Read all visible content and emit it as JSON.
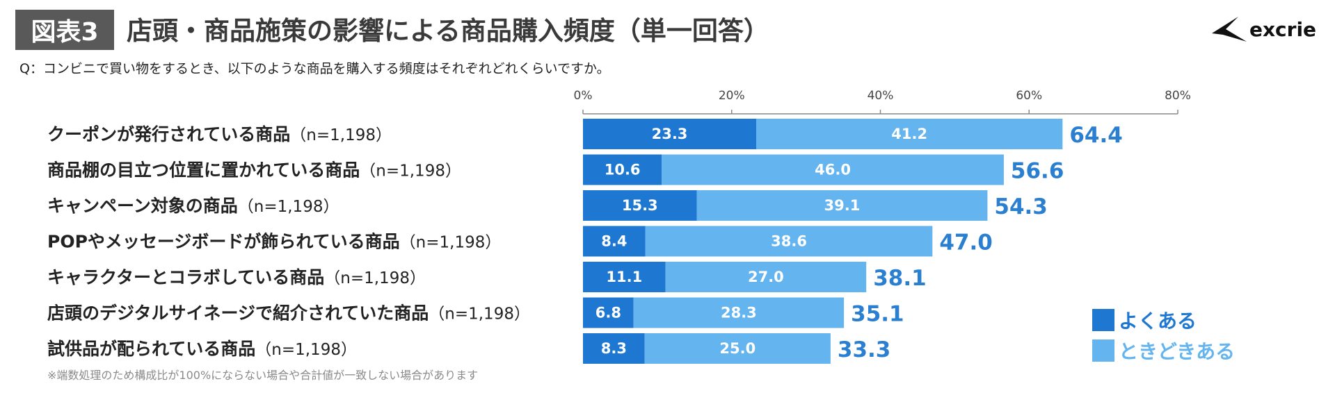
{
  "header": {
    "badge": "図表3",
    "title": "店頭・商品施策の影響による商品購入頻度（単一回答）",
    "brand": "excrie"
  },
  "question": "Q：コンビニで買い物をするとき、以下のような商品を購入する頻度はそれぞれどれくらいですか。",
  "note": "※端数処理のため構成比が100%にならない場合や合計値が一致しない場合があります",
  "colors": {
    "often": "#1e78d2",
    "sometimes": "#64b4f0",
    "total_text": "#2a7fd0",
    "axis": "#888888"
  },
  "chart_data": {
    "type": "bar",
    "orientation": "horizontal",
    "stacked": true,
    "categories": [
      {
        "label": "クーポンが発行されている商品",
        "n": "（n=1,198）"
      },
      {
        "label": "商品棚の目立つ位置に置かれている商品",
        "n": "（n=1,198）"
      },
      {
        "label": "キャンペーン対象の商品",
        "n": "（n=1,198）"
      },
      {
        "label": "POPやメッセージボードが飾られている商品",
        "n": "（n=1,198）"
      },
      {
        "label": "キャラクターとコラボしている商品",
        "n": "（n=1,198）"
      },
      {
        "label": "店頭のデジタルサイネージで紹介されていた商品",
        "n": "（n=1,198）"
      },
      {
        "label": "試供品が配られている商品",
        "n": "（n=1,198）"
      }
    ],
    "series": [
      {
        "name": "よくある",
        "values": [
          "23.3",
          "10.6",
          "15.3",
          "8.4",
          "11.1",
          "6.8",
          "8.3"
        ]
      },
      {
        "name": "ときどきある",
        "values": [
          "41.2",
          "46.0",
          "39.1",
          "38.6",
          "27.0",
          "28.3",
          "25.0"
        ]
      }
    ],
    "totals": [
      "64.4",
      "56.6",
      "54.3",
      "47.0",
      "38.1",
      "35.1",
      "33.3"
    ],
    "xlim": [
      0,
      80
    ],
    "xticks": [
      "0%",
      "20%",
      "40%",
      "60%",
      "80%"
    ],
    "legend": "bottom-right"
  }
}
